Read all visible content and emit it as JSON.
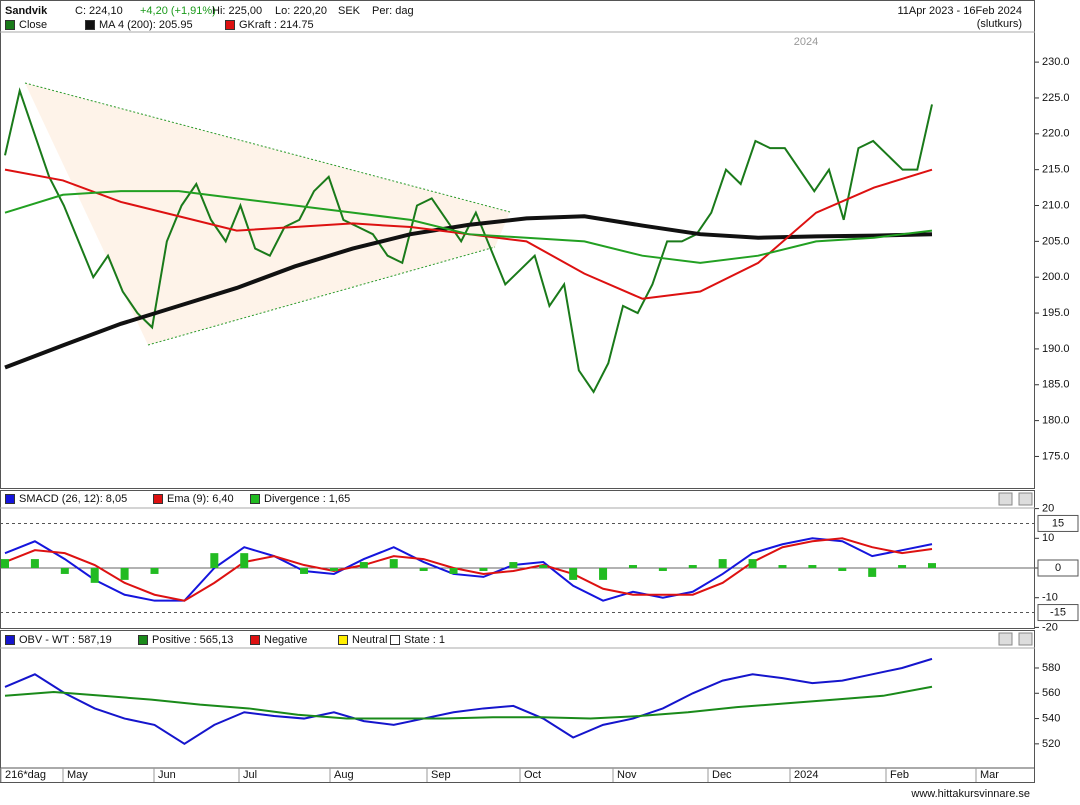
{
  "header": {
    "name": "Sandvik",
    "close": "C: 224,10",
    "change": "+4,20 (+1,91%)",
    "high": "Hi: 225,00",
    "low": "Lo: 220,20",
    "currency": "SEK",
    "period": "Per: dag",
    "range": "11Apr 2023 - 16Feb 2024",
    "range_note": "(slutkurs)"
  },
  "xaxis": {
    "labels": [
      "216*dag",
      "May",
      "Jun",
      "Jul",
      "Aug",
      "Sep",
      "Oct",
      "Nov",
      "Dec",
      "2024",
      "Feb",
      "Mar"
    ]
  },
  "footer": "www.hittakursvinnare.se",
  "chart_data": [
    {
      "type": "line",
      "annotation": "2024",
      "ylim": [
        170.6,
        234.2
      ],
      "yticks": [
        {
          "value": 175,
          "label": "175.0"
        },
        {
          "value": 180,
          "label": "180.0"
        },
        {
          "value": 185,
          "label": "185.0"
        },
        {
          "value": 190,
          "label": "190.0"
        },
        {
          "value": 195,
          "label": "195.0"
        },
        {
          "value": 200,
          "label": "200.0"
        },
        {
          "value": 205,
          "label": "205.0"
        },
        {
          "value": 210,
          "label": "210.0"
        },
        {
          "value": 215,
          "label": "215.0"
        },
        {
          "value": 220,
          "label": "220.0"
        },
        {
          "value": 225,
          "label": "225.0"
        },
        {
          "value": 230,
          "label": "230.0"
        }
      ],
      "series": [
        {
          "name": "Close",
          "color": "#1a7a1a",
          "values": [
            217,
            226,
            220,
            214,
            210,
            205,
            200,
            203,
            198,
            195,
            193,
            205,
            210,
            213,
            208,
            205,
            210,
            204,
            203,
            207,
            208,
            212,
            214,
            208,
            207,
            206,
            203,
            202,
            210,
            211,
            208,
            205,
            209,
            204,
            199,
            201,
            203,
            196,
            199,
            187,
            184,
            188,
            196,
            195,
            199,
            205,
            205,
            206,
            209,
            215,
            213,
            219,
            218,
            218,
            215,
            212,
            215,
            208,
            218,
            219,
            217,
            215,
            215,
            224.1
          ]
        },
        {
          "name": "MA 4 (200): 205.95",
          "color": "#111111",
          "values": [
            187.4,
            190.5,
            193.5,
            196,
            198.5,
            201.5,
            204,
            206,
            207.3,
            208.2,
            208.5,
            207.2,
            206,
            205.5,
            205.7,
            205.8,
            206
          ]
        },
        {
          "name": "GKraft : 214.75",
          "color": "#dd1111",
          "values": [
            215,
            213.5,
            210.5,
            208.5,
            206.5,
            207,
            207.5,
            207,
            206,
            205,
            200.5,
            197,
            198,
            202,
            209,
            212.5,
            215
          ]
        },
        {
          "color": "#22a022",
          "values": [
            209,
            211.5,
            212,
            212,
            211,
            210,
            209,
            208,
            206,
            205.5,
            205,
            203,
            202,
            203,
            205,
            205.5,
            206.5
          ]
        }
      ]
    },
    {
      "type": "line",
      "ylim": [
        -20.2,
        20.2
      ],
      "yticks": [
        -20,
        -10,
        0,
        10,
        20
      ],
      "levels": [
        15,
        0,
        -15
      ],
      "series": [
        {
          "name": "SMACD (26, 12): 8,05",
          "color": "#1515dd",
          "values": [
            5,
            9,
            3,
            -4,
            -9,
            -11,
            -11,
            0,
            7,
            4,
            -1,
            -2,
            3,
            7,
            2,
            -2,
            -3,
            1,
            2,
            -6,
            -11,
            -8,
            -10,
            -8,
            -2,
            5,
            8,
            10,
            9,
            4,
            6,
            8.05
          ]
        },
        {
          "name": "Ema (9): 6,40",
          "color": "#dd1111",
          "values": [
            2,
            6,
            5,
            1,
            -5,
            -9,
            -11,
            -5,
            2,
            4,
            1,
            -1,
            1,
            4,
            3,
            0,
            -2,
            -1,
            1,
            -2,
            -7,
            -9,
            -9,
            -9,
            -5,
            2,
            7,
            9,
            10,
            7,
            5,
            6.4
          ]
        },
        {
          "name": "Divergence : 1,65",
          "color": "#22bb22",
          "type": "bar",
          "values": [
            3,
            3,
            -2,
            -5,
            -4,
            -2,
            0,
            5,
            5,
            0,
            -2,
            -1,
            2,
            3,
            -1,
            -2,
            -1,
            2,
            1,
            -4,
            -4,
            1,
            -1,
            1,
            3,
            3,
            1,
            1,
            -1,
            -3,
            1,
            1.65
          ]
        }
      ]
    },
    {
      "type": "line",
      "ylim": [
        500.9,
        595.8
      ],
      "yticks": [
        520,
        540,
        560,
        580
      ],
      "series": [
        {
          "name": "OBV - WT : 587,19",
          "color": "#1515cc",
          "values": [
            565,
            575,
            560,
            548,
            540,
            535,
            520,
            535,
            545,
            542,
            540,
            545,
            538,
            535,
            540,
            545,
            548,
            550,
            540,
            525,
            535,
            540,
            548,
            560,
            570,
            575,
            572,
            568,
            570,
            575,
            580,
            587.19
          ]
        },
        {
          "name": "Positive : 565,13",
          "color": "#1a8a1a",
          "values": [
            558,
            561,
            558,
            555,
            551,
            548,
            543,
            540,
            540,
            540,
            541,
            541,
            540,
            542,
            545,
            549,
            552,
            555,
            558,
            565.13
          ]
        }
      ],
      "legend_extra": [
        {
          "name": "Negative",
          "color": "#dd1111"
        },
        {
          "name": "Neutral",
          "color": "#ffee00"
        },
        {
          "name": "State : 1",
          "color": "#ffffff"
        }
      ]
    }
  ]
}
